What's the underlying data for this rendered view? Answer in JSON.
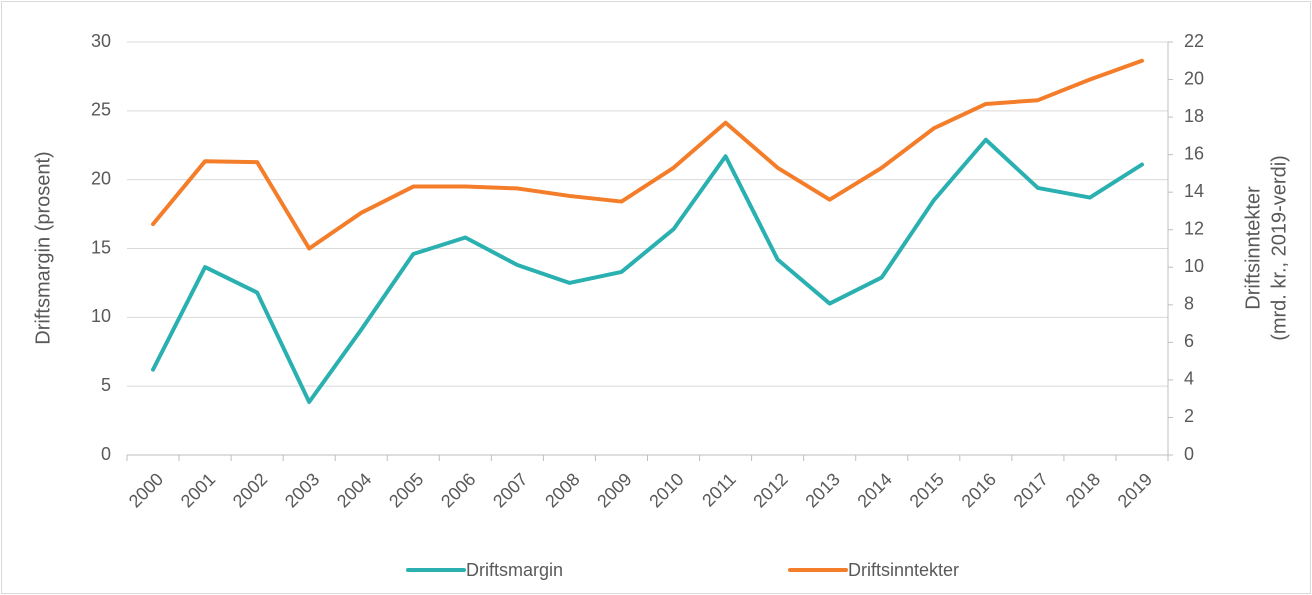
{
  "chart_data": {
    "type": "line",
    "ylabel": "Driftsmargin (prosent)",
    "y2label": [
      "Driftsinntekter",
      "(mrd. kr., 2019-verdi)"
    ],
    "categories": [
      "2000",
      "2001",
      "2002",
      "2003",
      "2004",
      "2005",
      "2006",
      "2007",
      "2008",
      "2009",
      "2010",
      "2011",
      "2012",
      "2013",
      "2014",
      "2015",
      "2016",
      "2017",
      "2018",
      "2019"
    ],
    "series": [
      {
        "name": "Driftsmargin",
        "color": "#2ab0b0",
        "axis": "y",
        "values": [
          6.2,
          13.65,
          11.8,
          3.85,
          9.1,
          14.6,
          15.8,
          13.8,
          12.5,
          13.3,
          16.4,
          21.7,
          14.2,
          11.0,
          12.9,
          18.5,
          22.9,
          19.4,
          18.7,
          21.1
        ]
      },
      {
        "name": "Driftsinntekter",
        "color": "#f47d2a",
        "axis": "y2",
        "values": [
          12.3,
          15.65,
          15.6,
          11.0,
          12.9,
          14.3,
          14.3,
          14.2,
          13.8,
          13.5,
          15.3,
          17.7,
          15.3,
          13.6,
          15.3,
          17.4,
          18.7,
          18.9,
          20.0,
          21.0
        ]
      }
    ],
    "ylim": [
      0,
      30
    ],
    "yticks": [
      0,
      5,
      10,
      15,
      20,
      25,
      30
    ],
    "y2lim": [
      0,
      22
    ],
    "y2ticks": [
      0,
      2,
      4,
      6,
      8,
      10,
      12,
      14,
      16,
      18,
      20,
      22
    ],
    "grid": true,
    "legend": "bottom"
  }
}
